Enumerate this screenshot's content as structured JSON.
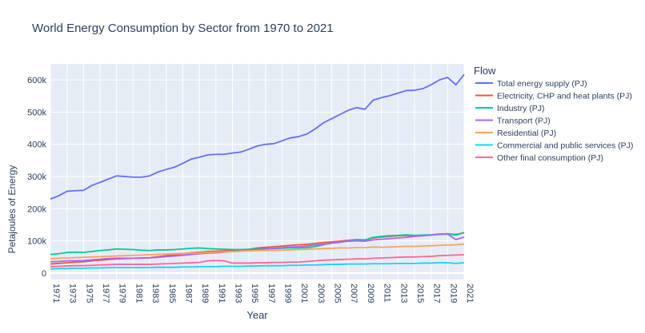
{
  "chart_data": {
    "type": "line",
    "title": "World Energy Consumption by Sector from 1970 to 2021",
    "xlabel": "Year",
    "ylabel": "Petajoules of Energy",
    "xlim": [
      1971,
      2021
    ],
    "ylim": [
      -20000,
      650000
    ],
    "x_ticks": [
      1971,
      1973,
      1975,
      1977,
      1979,
      1981,
      1983,
      1985,
      1987,
      1989,
      1991,
      1993,
      1995,
      1997,
      1999,
      2001,
      2003,
      2005,
      2007,
      2009,
      2011,
      2013,
      2015,
      2017,
      2019,
      2021
    ],
    "x_tick_labels": [
      "1971",
      "1973",
      "1975",
      "1977",
      "1979",
      "1981",
      "1983",
      "1985",
      "1987",
      "1989",
      "1991",
      "1993",
      "1995",
      "1997",
      "1999",
      "2001",
      "2003",
      "2005",
      "2007",
      "2009",
      "2011",
      "2013",
      "2015",
      "2017",
      "2019",
      "2021"
    ],
    "y_ticks": [
      0,
      100000,
      200000,
      300000,
      400000,
      500000,
      600000
    ],
    "y_tick_labels": [
      "0",
      "100k",
      "200k",
      "300k",
      "400k",
      "500k",
      "600k"
    ],
    "grid": true,
    "legend": {
      "title": "Flow",
      "position": "right"
    },
    "x": [
      1971,
      1972,
      1973,
      1974,
      1975,
      1976,
      1977,
      1978,
      1979,
      1980,
      1981,
      1982,
      1983,
      1984,
      1985,
      1986,
      1987,
      1988,
      1989,
      1990,
      1991,
      1992,
      1993,
      1994,
      1995,
      1996,
      1997,
      1998,
      1999,
      2000,
      2001,
      2002,
      2003,
      2004,
      2005,
      2006,
      2007,
      2008,
      2009,
      2010,
      2011,
      2012,
      2013,
      2014,
      2015,
      2016,
      2017,
      2018,
      2019,
      2020,
      2021
    ],
    "series": [
      {
        "name": "Total energy supply (PJ)",
        "color": "#636efa",
        "values": [
          230000,
          240000,
          254000,
          256000,
          257000,
          272000,
          282000,
          292000,
          302000,
          300000,
          298000,
          298000,
          302000,
          314000,
          322000,
          329000,
          341000,
          354000,
          360000,
          367000,
          369000,
          369000,
          373000,
          376000,
          385000,
          395000,
          400000,
          402000,
          411000,
          420000,
          424000,
          432000,
          448000,
          467000,
          480000,
          493000,
          506000,
          514000,
          509000,
          537000,
          545000,
          551000,
          559000,
          567000,
          568000,
          573000,
          585000,
          600000,
          608000,
          585000,
          617000
        ]
      },
      {
        "name": "Electricity, CHP and heat plants (PJ)",
        "color": "#ef553b",
        "values": [
          28000,
          30000,
          32000,
          34000,
          35000,
          38000,
          40000,
          42000,
          44000,
          45000,
          46000,
          47000,
          48000,
          51000,
          54000,
          57000,
          60000,
          63000,
          65000,
          67000,
          68000,
          69000,
          70000,
          72000,
          74000,
          78000,
          80000,
          82000,
          84000,
          86000,
          88000,
          89000,
          92000,
          95000,
          97000,
          99000,
          102000,
          104000,
          103000,
          109000,
          112000,
          114000,
          116000,
          117000,
          116000,
          117000,
          118000,
          121000,
          122000,
          118000,
          126000
        ]
      },
      {
        "name": "Industry (PJ)",
        "color": "#00cc96",
        "values": [
          58000,
          60000,
          64000,
          65000,
          64000,
          67000,
          70000,
          72000,
          75000,
          74000,
          73000,
          71000,
          70000,
          72000,
          72000,
          73000,
          75000,
          77000,
          78000,
          76000,
          75000,
          74000,
          73000,
          73000,
          74000,
          75000,
          76000,
          76000,
          77000,
          78000,
          78000,
          79000,
          82000,
          88000,
          93000,
          96000,
          100000,
          103000,
          103000,
          111000,
          114000,
          116000,
          117000,
          119000,
          117000,
          118000,
          119000,
          121000,
          122000,
          120000,
          125000
        ]
      },
      {
        "name": "Transport (PJ)",
        "color": "#ab63fa",
        "values": [
          35000,
          36000,
          38000,
          38000,
          39000,
          41000,
          43000,
          45000,
          46000,
          46000,
          46000,
          46000,
          47000,
          49000,
          51000,
          53000,
          55000,
          58000,
          60000,
          62000,
          63000,
          65000,
          67000,
          69000,
          71000,
          73000,
          75000,
          77000,
          79000,
          81000,
          82000,
          84000,
          87000,
          90000,
          93000,
          96000,
          99000,
          100000,
          99000,
          103000,
          105000,
          107000,
          109000,
          111000,
          114000,
          116000,
          118000,
          120000,
          121000,
          104000,
          112000
        ]
      },
      {
        "name": "Residential (PJ)",
        "color": "#ffa15a",
        "values": [
          45000,
          46000,
          47000,
          48000,
          49000,
          50000,
          51000,
          52000,
          53000,
          54000,
          55000,
          56000,
          57000,
          58000,
          59000,
          60000,
          61000,
          62000,
          63000,
          64000,
          65000,
          66000,
          67000,
          68000,
          69000,
          70000,
          70000,
          71000,
          71000,
          72000,
          73000,
          74000,
          75000,
          76000,
          77000,
          78000,
          78000,
          79000,
          79000,
          81000,
          80000,
          81000,
          82000,
          83000,
          83000,
          84000,
          85000,
          86000,
          87000,
          88000,
          90000
        ]
      },
      {
        "name": "Commercial and public services (PJ)",
        "color": "#19d3f3",
        "values": [
          13000,
          14000,
          14000,
          15000,
          15000,
          16000,
          16000,
          17000,
          17000,
          17000,
          17000,
          17000,
          17000,
          18000,
          18000,
          18000,
          19000,
          19000,
          20000,
          20000,
          20000,
          21000,
          21000,
          21000,
          22000,
          22000,
          23000,
          23000,
          23000,
          24000,
          24000,
          25000,
          25000,
          26000,
          27000,
          27000,
          28000,
          28000,
          28000,
          29000,
          29000,
          29000,
          30000,
          30000,
          30000,
          31000,
          31000,
          32000,
          32000,
          30000,
          32000
        ]
      },
      {
        "name": "Other final consumption (PJ)",
        "color": "#ff6692",
        "values": [
          20000,
          21000,
          22000,
          23000,
          23000,
          24000,
          25000,
          26000,
          27000,
          27000,
          27000,
          27000,
          27000,
          28000,
          29000,
          30000,
          31000,
          32000,
          33000,
          38000,
          39000,
          38000,
          31000,
          31000,
          31000,
          32000,
          32000,
          33000,
          33000,
          34000,
          34000,
          36000,
          38000,
          40000,
          41000,
          42000,
          43000,
          44000,
          44000,
          46000,
          47000,
          48000,
          49000,
          50000,
          50000,
          51000,
          52000,
          54000,
          55000,
          56000,
          57000
        ]
      }
    ]
  }
}
